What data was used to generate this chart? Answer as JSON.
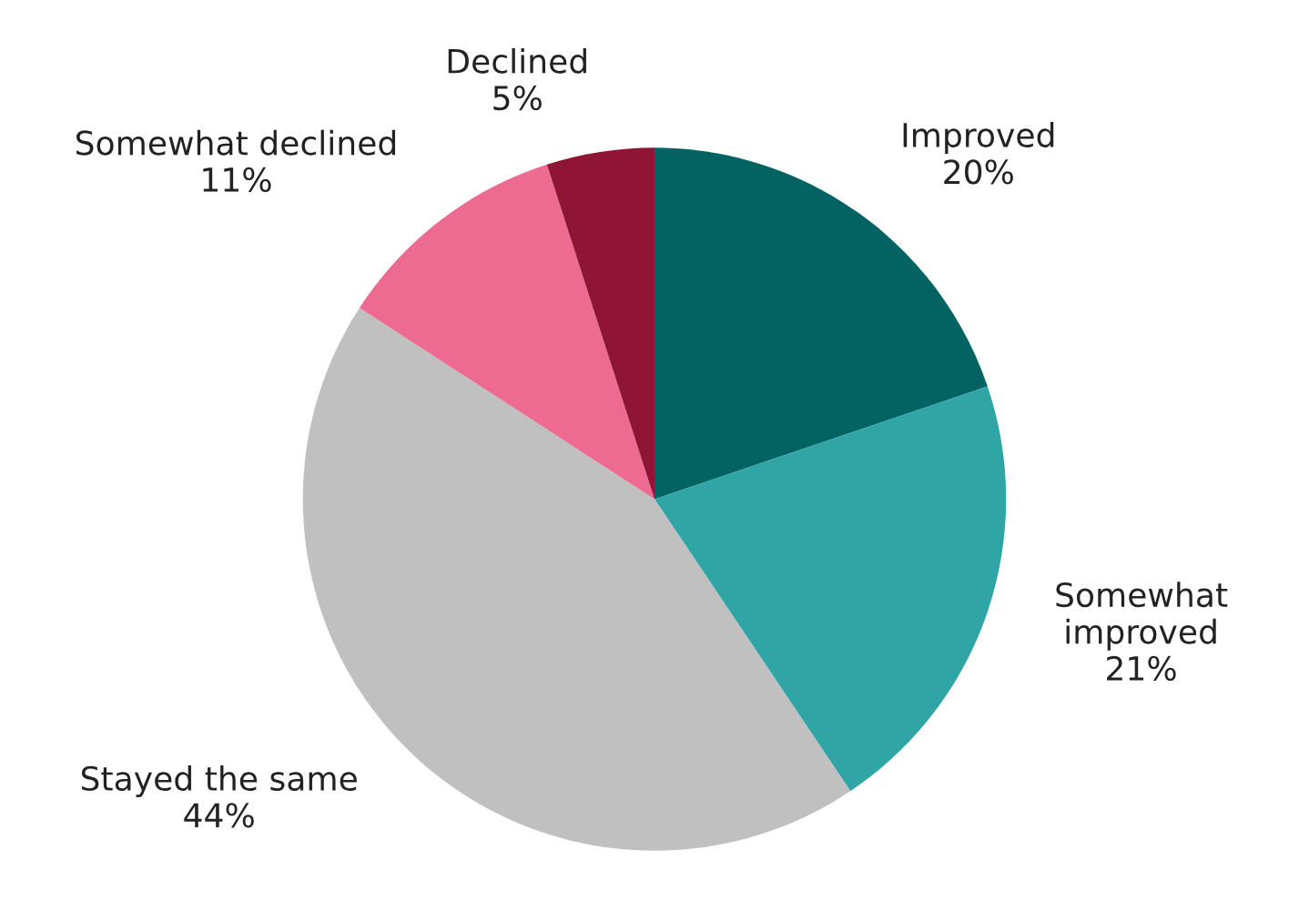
{
  "chart_data": {
    "type": "pie",
    "categories": [
      "Improved",
      "Somewhat\nimproved",
      "Stayed the same",
      "Somewhat declined",
      "Declined"
    ],
    "values": [
      20,
      21,
      44,
      11,
      5
    ],
    "value_labels": [
      "20%",
      "21%",
      "44%",
      "11%",
      "5%"
    ],
    "colors": [
      "#036363",
      "#2fa5a5",
      "#c0c0c0",
      "#ed6a91",
      "#8f1534"
    ],
    "legend": false
  }
}
